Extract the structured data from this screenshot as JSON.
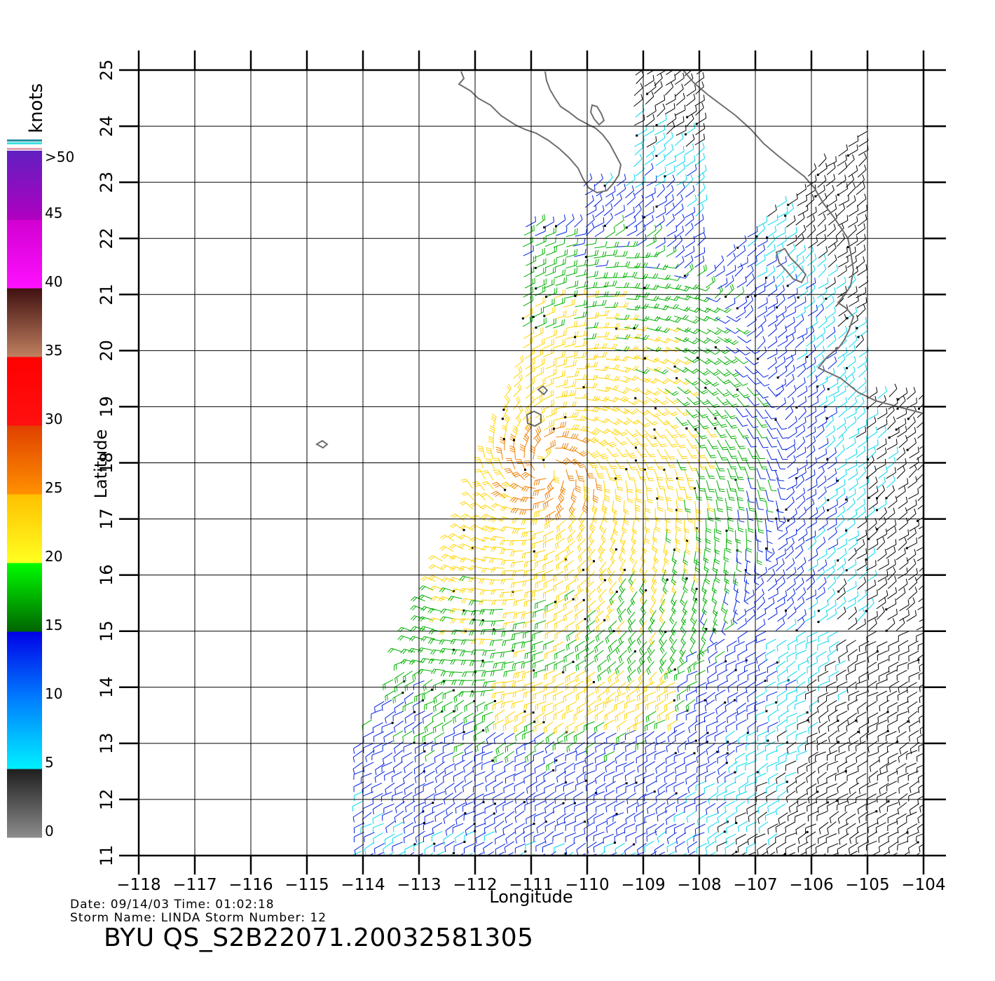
{
  "map": {
    "xlabel": "Longitude",
    "ylabel": "Latitude",
    "lon_ticks": [
      -118,
      -117,
      -116,
      -115,
      -114,
      -113,
      -112,
      -111,
      -110,
      -109,
      -108,
      -107,
      -106,
      -105,
      -104
    ],
    "lon_tick_labels": [
      "−118",
      "−117",
      "−116",
      "−115",
      "−114",
      "−113",
      "−112",
      "−111",
      "−110",
      "−109",
      "−108",
      "−107",
      "−106",
      "−105",
      "−104"
    ],
    "lat_ticks": [
      11,
      12,
      13,
      14,
      15,
      16,
      17,
      18,
      19,
      20,
      21,
      22,
      23,
      24,
      25
    ],
    "lat_tick_labels": [
      "11",
      "12",
      "13",
      "14",
      "15",
      "16",
      "17",
      "18",
      "19",
      "20",
      "21",
      "22",
      "23",
      "24",
      "25"
    ],
    "lon_range": [
      -118,
      -103.6
    ],
    "lat_range": [
      11,
      25
    ],
    "grid": true,
    "storm_center": {
      "lon": -110.7,
      "lat": 17.9
    }
  },
  "colorbar": {
    "unit": "knots",
    "tick_labels": [
      ">50",
      "45",
      "40",
      "35",
      "30",
      "25",
      "20",
      "15",
      "10",
      "5",
      "0"
    ],
    "tick_values": [
      50,
      45,
      40,
      35,
      30,
      25,
      20,
      15,
      10,
      5,
      0
    ],
    "bands": [
      {
        "from": 0,
        "to": 5,
        "colors": [
          "#8c8c8c",
          "#1e1e1e"
        ]
      },
      {
        "from": 5,
        "to": 10,
        "colors": [
          "#00f0ff",
          "#0080ff"
        ]
      },
      {
        "from": 10,
        "to": 15,
        "colors": [
          "#0080ff",
          "#0000e6"
        ]
      },
      {
        "from": 15,
        "to": 20,
        "colors": [
          "#006400",
          "#00ff00"
        ]
      },
      {
        "from": 20,
        "to": 25,
        "colors": [
          "#ffff20",
          "#ffc000"
        ]
      },
      {
        "from": 25,
        "to": 30,
        "colors": [
          "#ff9000",
          "#e04000"
        ]
      },
      {
        "from": 30,
        "to": 35,
        "colors": [
          "#ff1010",
          "#ff0000"
        ]
      },
      {
        "from": 35,
        "to": 40,
        "colors": [
          "#c08060",
          "#401010"
        ]
      },
      {
        "from": 40,
        "to": 45,
        "colors": [
          "#ff10ff",
          "#d000d0"
        ]
      },
      {
        "from": 45,
        "to": 50,
        "colors": [
          "#b000c0",
          "#6020c0"
        ]
      }
    ]
  },
  "wind_colors": {
    "calm": "#000000",
    "cyan": "#00d8f0",
    "blue": "#0020e0",
    "green": "#00b000",
    "yellow": "#ffd400",
    "orange": "#f08000",
    "red": "#e01000",
    "brown": "#703010",
    "magenta": "#c000c0"
  },
  "coast_color": "#6e6e6e",
  "footer": {
    "date_line": "Date: 09/14/03   Time: 01:02:18",
    "storm_line": "Storm  Name: LINDA    Storm  Number: 12",
    "file_id": "BYU  QS_S2B22071.20032581305"
  }
}
